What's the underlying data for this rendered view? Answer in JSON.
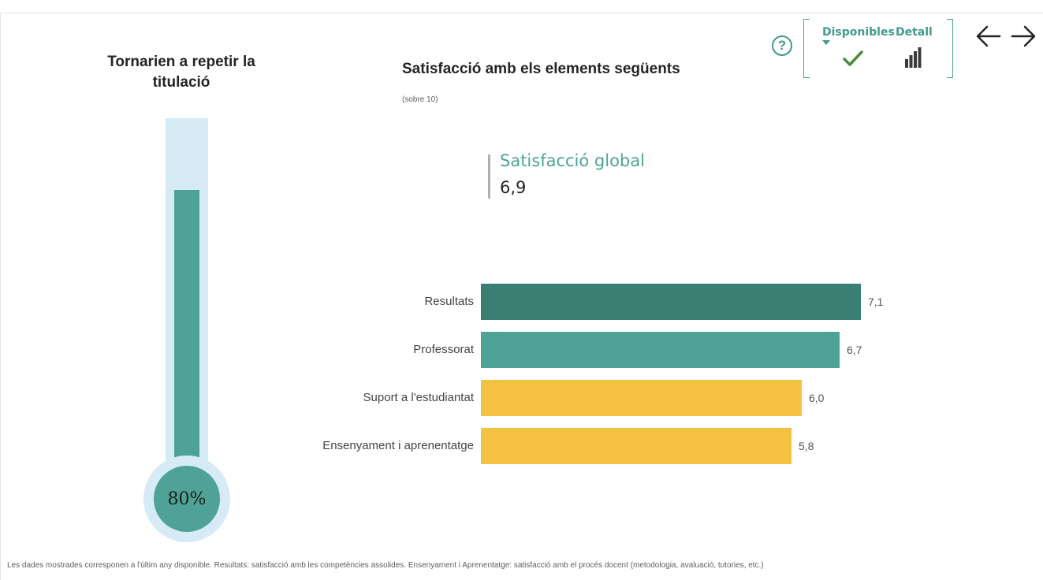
{
  "thermometer": {
    "title": "Tornarien a repetir la titulació",
    "value_label": "80%",
    "fill_fraction": 0.8,
    "colors": {
      "tube": "#d6ebf5",
      "fill": "#4fa396"
    }
  },
  "chart_header": {
    "title": "Satisfacció amb els elements següents",
    "subtitle": "(sobre 10)"
  },
  "kpi": {
    "label": "Satisfacció global",
    "value": "6,9"
  },
  "chart_data": {
    "type": "bar",
    "orientation": "horizontal",
    "categories": [
      "Resultats",
      "Professorat",
      "Suport a l'estudiantat",
      "Ensenyament i aprenentatge"
    ],
    "values": [
      7.1,
      6.7,
      6.0,
      5.8
    ],
    "value_labels": [
      "7,1",
      "6,7",
      "6,0",
      "5,8"
    ],
    "colors": [
      "#3a7f74",
      "#4fa396",
      "#f4c142",
      "#f4c142"
    ],
    "xlim": [
      0,
      10
    ],
    "grid": false
  },
  "controls": {
    "help_symbol": "?",
    "tab_available": "Disponibles",
    "tab_detail": "Detall",
    "icons": [
      "help-icon",
      "check-icon",
      "bar-chart-icon",
      "arrow-left-icon",
      "arrow-right-icon"
    ],
    "accent": "#3f9b8e"
  },
  "footnote": "Les dades mostrades corresponen a l'últim any disponible. Resultats: satisfacció amb les competències assolides. Ensenyament i Aprenentatge: satisfacció amb el procés docent (metodologia, avaluació, tutories, etc.)"
}
